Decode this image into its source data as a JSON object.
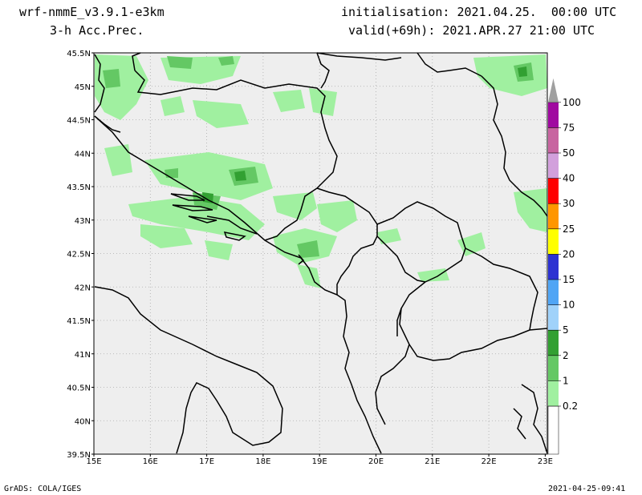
{
  "header": {
    "model": "wrf-nmmE_v3.9.1-e3km",
    "field": "3-h Acc.Prec.",
    "init": "initialisation: 2021.04.25.  00:00 UTC",
    "valid": "valid(+69h): 2021.APR.27 21:00 UTC"
  },
  "footer": {
    "credit": "GrADS: COLA/IGES",
    "stamp": "2021-04-25-09:41"
  },
  "map": {
    "lat_labels": [
      "45.5N",
      "45N",
      "44.5N",
      "44N",
      "43.5N",
      "43N",
      "42.5N",
      "42N",
      "41.5N",
      "41N",
      "40.5N",
      "40N",
      "39.5N"
    ],
    "lon_labels": [
      "15E",
      "16E",
      "17E",
      "18E",
      "19E",
      "20E",
      "21E",
      "22E",
      "23E"
    ],
    "colors": {
      "land": "#eeeeee",
      "coast": "#000000",
      "sea": "#eeeeee"
    }
  },
  "legend": {
    "levels": [
      "0.2",
      "1",
      "2",
      "5",
      "10",
      "15",
      "20",
      "25",
      "30",
      "40",
      "50",
      "75",
      "100"
    ],
    "colors": [
      "#a0f0a0",
      "#64c864",
      "#32a032",
      "#a0d2fa",
      "#50a5f5",
      "#2d32d2",
      "#ffff00",
      "#ff9600",
      "#ff0000",
      "#d2a0dc",
      "#c864a0",
      "#a00aa0",
      "#a0a0a0"
    ]
  }
}
